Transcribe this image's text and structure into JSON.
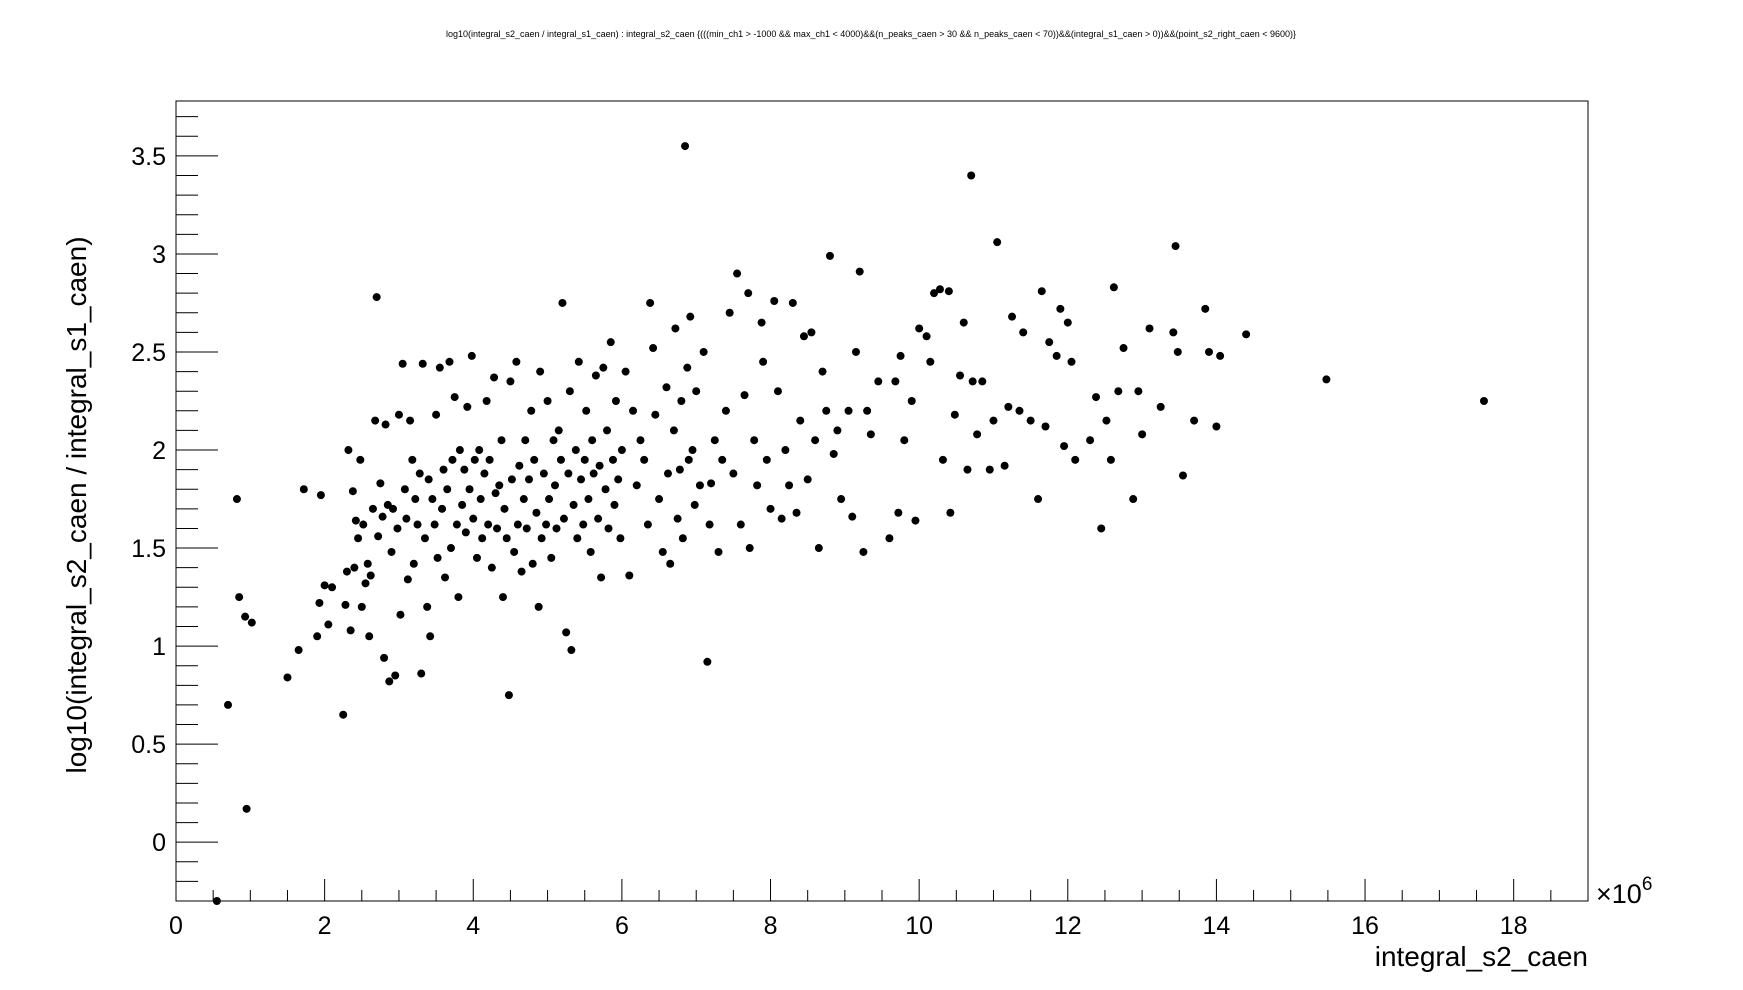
{
  "chart_data": {
    "type": "scatter",
    "title": "log10(integral_s2_caen / integral_s1_caen) : integral_s2_caen {(((min_ch1 > -1000 && max_ch1 < 4000)&&(n_peaks_caen > 30 && n_peaks_caen < 70))&&(integral_s1_caen > 0))&&(point_s2_right_caen < 9600)}",
    "xlabel": "integral_s2_caen",
    "ylabel": "log10(integral_s2_caen / integral_s1_caen)",
    "x_exponent_label": "×10",
    "x_exponent_power": "6",
    "xlim": [
      0,
      19
    ],
    "ylim": [
      -0.3,
      3.78
    ],
    "x_ticks": [
      0,
      2,
      4,
      6,
      8,
      10,
      12,
      14,
      16,
      18
    ],
    "x_tick_labels": [
      "0",
      "2",
      "4",
      "6",
      "8",
      "10",
      "12",
      "14",
      "16",
      "18"
    ],
    "y_ticks": [
      0,
      0.5,
      1,
      1.5,
      2,
      2.5,
      3,
      3.5
    ],
    "y_tick_labels": [
      "0",
      "0.5",
      "1",
      "1.5",
      "2",
      "2.5",
      "3",
      "3.5"
    ],
    "marker_color": "#000000",
    "grid": false,
    "x_unit_note": "x values in units of 10^6",
    "points": [
      [
        0.55,
        -0.3
      ],
      [
        0.7,
        0.7
      ],
      [
        0.82,
        1.75
      ],
      [
        0.85,
        1.25
      ],
      [
        0.93,
        1.15
      ],
      [
        0.95,
        0.17
      ],
      [
        1.02,
        1.12
      ],
      [
        1.5,
        0.84
      ],
      [
        1.65,
        0.98
      ],
      [
        1.72,
        1.8
      ],
      [
        1.9,
        1.05
      ],
      [
        1.93,
        1.22
      ],
      [
        1.95,
        1.77
      ],
      [
        2.0,
        1.31
      ],
      [
        2.05,
        1.11
      ],
      [
        2.1,
        1.3
      ],
      [
        2.25,
        0.65
      ],
      [
        2.28,
        1.21
      ],
      [
        2.3,
        1.38
      ],
      [
        2.32,
        2.0
      ],
      [
        2.35,
        1.08
      ],
      [
        2.38,
        1.79
      ],
      [
        2.4,
        1.4
      ],
      [
        2.42,
        1.64
      ],
      [
        2.45,
        1.55
      ],
      [
        2.48,
        1.95
      ],
      [
        2.5,
        1.2
      ],
      [
        2.52,
        1.62
      ],
      [
        2.55,
        1.32
      ],
      [
        2.58,
        1.42
      ],
      [
        2.6,
        1.05
      ],
      [
        2.62,
        1.36
      ],
      [
        2.65,
        1.7
      ],
      [
        2.68,
        2.15
      ],
      [
        2.7,
        2.78
      ],
      [
        2.72,
        1.56
      ],
      [
        2.75,
        1.83
      ],
      [
        2.78,
        1.66
      ],
      [
        2.8,
        0.94
      ],
      [
        2.82,
        2.13
      ],
      [
        2.85,
        1.72
      ],
      [
        2.87,
        0.82
      ],
      [
        2.9,
        1.48
      ],
      [
        2.92,
        1.7
      ],
      [
        2.95,
        0.85
      ],
      [
        2.98,
        1.6
      ],
      [
        3.0,
        2.18
      ],
      [
        3.02,
        1.16
      ],
      [
        3.05,
        2.44
      ],
      [
        3.08,
        1.8
      ],
      [
        3.1,
        1.65
      ],
      [
        3.12,
        1.34
      ],
      [
        3.15,
        2.15
      ],
      [
        3.18,
        1.95
      ],
      [
        3.2,
        1.42
      ],
      [
        3.22,
        1.75
      ],
      [
        3.25,
        1.62
      ],
      [
        3.28,
        1.88
      ],
      [
        3.3,
        0.86
      ],
      [
        3.32,
        2.44
      ],
      [
        3.35,
        1.55
      ],
      [
        3.38,
        1.2
      ],
      [
        3.4,
        1.85
      ],
      [
        3.42,
        1.05
      ],
      [
        3.45,
        1.75
      ],
      [
        3.48,
        1.62
      ],
      [
        3.5,
        2.18
      ],
      [
        3.52,
        1.45
      ],
      [
        3.55,
        2.42
      ],
      [
        3.58,
        1.7
      ],
      [
        3.6,
        1.9
      ],
      [
        3.62,
        1.35
      ],
      [
        3.65,
        1.8
      ],
      [
        3.68,
        2.45
      ],
      [
        3.7,
        1.5
      ],
      [
        3.72,
        1.95
      ],
      [
        3.75,
        2.27
      ],
      [
        3.78,
        1.62
      ],
      [
        3.8,
        1.25
      ],
      [
        3.82,
        2.0
      ],
      [
        3.85,
        1.72
      ],
      [
        3.88,
        1.9
      ],
      [
        3.9,
        1.58
      ],
      [
        3.92,
        2.22
      ],
      [
        3.95,
        1.8
      ],
      [
        3.98,
        2.48
      ],
      [
        4.0,
        1.65
      ],
      [
        4.02,
        1.95
      ],
      [
        4.05,
        1.45
      ],
      [
        4.08,
        2.0
      ],
      [
        4.1,
        1.75
      ],
      [
        4.12,
        1.55
      ],
      [
        4.15,
        1.88
      ],
      [
        4.18,
        2.25
      ],
      [
        4.2,
        1.62
      ],
      [
        4.22,
        1.95
      ],
      [
        4.25,
        1.4
      ],
      [
        4.28,
        2.37
      ],
      [
        4.3,
        1.78
      ],
      [
        4.32,
        1.6
      ],
      [
        4.35,
        1.82
      ],
      [
        4.38,
        2.05
      ],
      [
        4.4,
        1.25
      ],
      [
        4.42,
        1.7
      ],
      [
        4.45,
        1.55
      ],
      [
        4.48,
        0.75
      ],
      [
        4.5,
        2.35
      ],
      [
        4.52,
        1.85
      ],
      [
        4.55,
        1.48
      ],
      [
        4.58,
        2.45
      ],
      [
        4.6,
        1.62
      ],
      [
        4.62,
        1.92
      ],
      [
        4.65,
        1.38
      ],
      [
        4.68,
        1.75
      ],
      [
        4.7,
        2.05
      ],
      [
        4.72,
        1.6
      ],
      [
        4.75,
        1.85
      ],
      [
        4.78,
        2.2
      ],
      [
        4.8,
        1.42
      ],
      [
        4.82,
        1.95
      ],
      [
        4.85,
        1.68
      ],
      [
        4.88,
        1.2
      ],
      [
        4.9,
        2.4
      ],
      [
        4.92,
        1.55
      ],
      [
        4.95,
        1.88
      ],
      [
        4.98,
        1.62
      ],
      [
        5.0,
        2.25
      ],
      [
        5.02,
        1.75
      ],
      [
        5.05,
        1.45
      ],
      [
        5.08,
        2.05
      ],
      [
        5.1,
        1.82
      ],
      [
        5.12,
        1.6
      ],
      [
        5.15,
        2.1
      ],
      [
        5.18,
        1.95
      ],
      [
        5.2,
        2.75
      ],
      [
        5.22,
        1.65
      ],
      [
        5.25,
        1.07
      ],
      [
        5.28,
        1.88
      ],
      [
        5.3,
        2.3
      ],
      [
        5.32,
        0.98
      ],
      [
        5.35,
        1.72
      ],
      [
        5.38,
        2.0
      ],
      [
        5.4,
        1.55
      ],
      [
        5.42,
        2.45
      ],
      [
        5.45,
        1.85
      ],
      [
        5.48,
        1.62
      ],
      [
        5.5,
        1.95
      ],
      [
        5.52,
        2.2
      ],
      [
        5.55,
        1.75
      ],
      [
        5.58,
        1.48
      ],
      [
        5.6,
        2.05
      ],
      [
        5.62,
        1.88
      ],
      [
        5.65,
        2.38
      ],
      [
        5.68,
        1.65
      ],
      [
        5.7,
        1.92
      ],
      [
        5.72,
        1.35
      ],
      [
        5.75,
        2.42
      ],
      [
        5.78,
        1.8
      ],
      [
        5.8,
        2.1
      ],
      [
        5.82,
        1.6
      ],
      [
        5.85,
        2.55
      ],
      [
        5.88,
        1.95
      ],
      [
        5.9,
        1.72
      ],
      [
        5.92,
        2.25
      ],
      [
        5.95,
        1.85
      ],
      [
        5.98,
        1.55
      ],
      [
        6.0,
        2.0
      ],
      [
        6.05,
        2.4
      ],
      [
        6.1,
        1.36
      ],
      [
        6.15,
        2.2
      ],
      [
        6.2,
        1.82
      ],
      [
        6.25,
        2.05
      ],
      [
        6.3,
        1.95
      ],
      [
        6.35,
        1.62
      ],
      [
        6.38,
        2.75
      ],
      [
        6.42,
        2.52
      ],
      [
        6.45,
        2.18
      ],
      [
        6.5,
        1.75
      ],
      [
        6.55,
        1.48
      ],
      [
        6.6,
        2.32
      ],
      [
        6.62,
        1.88
      ],
      [
        6.65,
        1.42
      ],
      [
        6.7,
        2.1
      ],
      [
        6.72,
        2.62
      ],
      [
        6.75,
        1.65
      ],
      [
        6.78,
        1.9
      ],
      [
        6.8,
        2.25
      ],
      [
        6.82,
        1.55
      ],
      [
        6.85,
        3.55
      ],
      [
        6.88,
        2.42
      ],
      [
        6.9,
        1.95
      ],
      [
        6.92,
        2.68
      ],
      [
        6.95,
        2.0
      ],
      [
        6.98,
        1.72
      ],
      [
        7.0,
        2.3
      ],
      [
        7.05,
        1.82
      ],
      [
        7.1,
        2.5
      ],
      [
        7.15,
        0.92
      ],
      [
        7.18,
        1.62
      ],
      [
        7.2,
        1.83
      ],
      [
        7.25,
        2.05
      ],
      [
        7.3,
        1.48
      ],
      [
        7.35,
        1.95
      ],
      [
        7.4,
        2.2
      ],
      [
        7.45,
        2.7
      ],
      [
        7.5,
        1.88
      ],
      [
        7.55,
        2.9
      ],
      [
        7.6,
        1.62
      ],
      [
        7.65,
        2.28
      ],
      [
        7.7,
        2.8
      ],
      [
        7.72,
        1.5
      ],
      [
        7.78,
        2.05
      ],
      [
        7.82,
        1.82
      ],
      [
        7.88,
        2.65
      ],
      [
        7.9,
        2.45
      ],
      [
        7.95,
        1.95
      ],
      [
        8.0,
        1.7
      ],
      [
        8.05,
        2.76
      ],
      [
        8.1,
        2.3
      ],
      [
        8.15,
        1.65
      ],
      [
        8.2,
        2.0
      ],
      [
        8.25,
        1.82
      ],
      [
        8.3,
        2.75
      ],
      [
        8.35,
        1.68
      ],
      [
        8.4,
        2.15
      ],
      [
        8.45,
        2.58
      ],
      [
        8.5,
        1.85
      ],
      [
        8.55,
        2.6
      ],
      [
        8.6,
        2.05
      ],
      [
        8.65,
        1.5
      ],
      [
        8.7,
        2.4
      ],
      [
        8.75,
        2.2
      ],
      [
        8.8,
        2.99
      ],
      [
        8.85,
        1.98
      ],
      [
        8.9,
        2.1
      ],
      [
        8.95,
        1.75
      ],
      [
        9.05,
        2.2
      ],
      [
        9.1,
        1.66
      ],
      [
        9.15,
        2.5
      ],
      [
        9.2,
        2.91
      ],
      [
        9.25,
        1.48
      ],
      [
        9.3,
        2.2
      ],
      [
        9.35,
        2.08
      ],
      [
        9.45,
        2.35
      ],
      [
        9.6,
        1.55
      ],
      [
        9.68,
        2.35
      ],
      [
        9.72,
        1.68
      ],
      [
        9.75,
        2.48
      ],
      [
        9.8,
        2.05
      ],
      [
        9.9,
        2.25
      ],
      [
        9.95,
        1.64
      ],
      [
        10.0,
        2.62
      ],
      [
        10.1,
        2.58
      ],
      [
        10.15,
        2.45
      ],
      [
        10.2,
        2.8
      ],
      [
        10.28,
        2.82
      ],
      [
        10.32,
        1.95
      ],
      [
        10.4,
        2.81
      ],
      [
        10.42,
        1.68
      ],
      [
        10.48,
        2.18
      ],
      [
        10.55,
        2.38
      ],
      [
        10.6,
        2.65
      ],
      [
        10.65,
        1.9
      ],
      [
        10.7,
        3.4
      ],
      [
        10.72,
        2.35
      ],
      [
        10.78,
        2.08
      ],
      [
        10.85,
        2.35
      ],
      [
        10.95,
        1.9
      ],
      [
        11.0,
        2.15
      ],
      [
        11.05,
        3.06
      ],
      [
        11.15,
        1.92
      ],
      [
        11.2,
        2.22
      ],
      [
        11.25,
        2.68
      ],
      [
        11.35,
        2.2
      ],
      [
        11.4,
        2.6
      ],
      [
        11.5,
        2.15
      ],
      [
        11.6,
        1.75
      ],
      [
        11.65,
        2.81
      ],
      [
        11.7,
        2.12
      ],
      [
        11.75,
        2.55
      ],
      [
        11.85,
        2.48
      ],
      [
        11.9,
        2.72
      ],
      [
        11.95,
        2.02
      ],
      [
        12.0,
        2.65
      ],
      [
        12.05,
        2.45
      ],
      [
        12.1,
        1.95
      ],
      [
        12.3,
        2.05
      ],
      [
        12.38,
        2.27
      ],
      [
        12.45,
        1.6
      ],
      [
        12.52,
        2.15
      ],
      [
        12.58,
        1.95
      ],
      [
        12.62,
        2.83
      ],
      [
        12.68,
        2.3
      ],
      [
        12.75,
        2.52
      ],
      [
        12.88,
        1.75
      ],
      [
        12.95,
        2.3
      ],
      [
        13.0,
        2.08
      ],
      [
        13.1,
        2.62
      ],
      [
        13.25,
        2.22
      ],
      [
        13.42,
        2.6
      ],
      [
        13.45,
        3.04
      ],
      [
        13.48,
        2.5
      ],
      [
        13.55,
        1.87
      ],
      [
        13.7,
        2.15
      ],
      [
        13.85,
        2.72
      ],
      [
        13.9,
        2.5
      ],
      [
        14.0,
        2.12
      ],
      [
        14.05,
        2.48
      ],
      [
        14.4,
        2.59
      ],
      [
        15.48,
        2.36
      ],
      [
        17.6,
        2.25
      ]
    ]
  }
}
